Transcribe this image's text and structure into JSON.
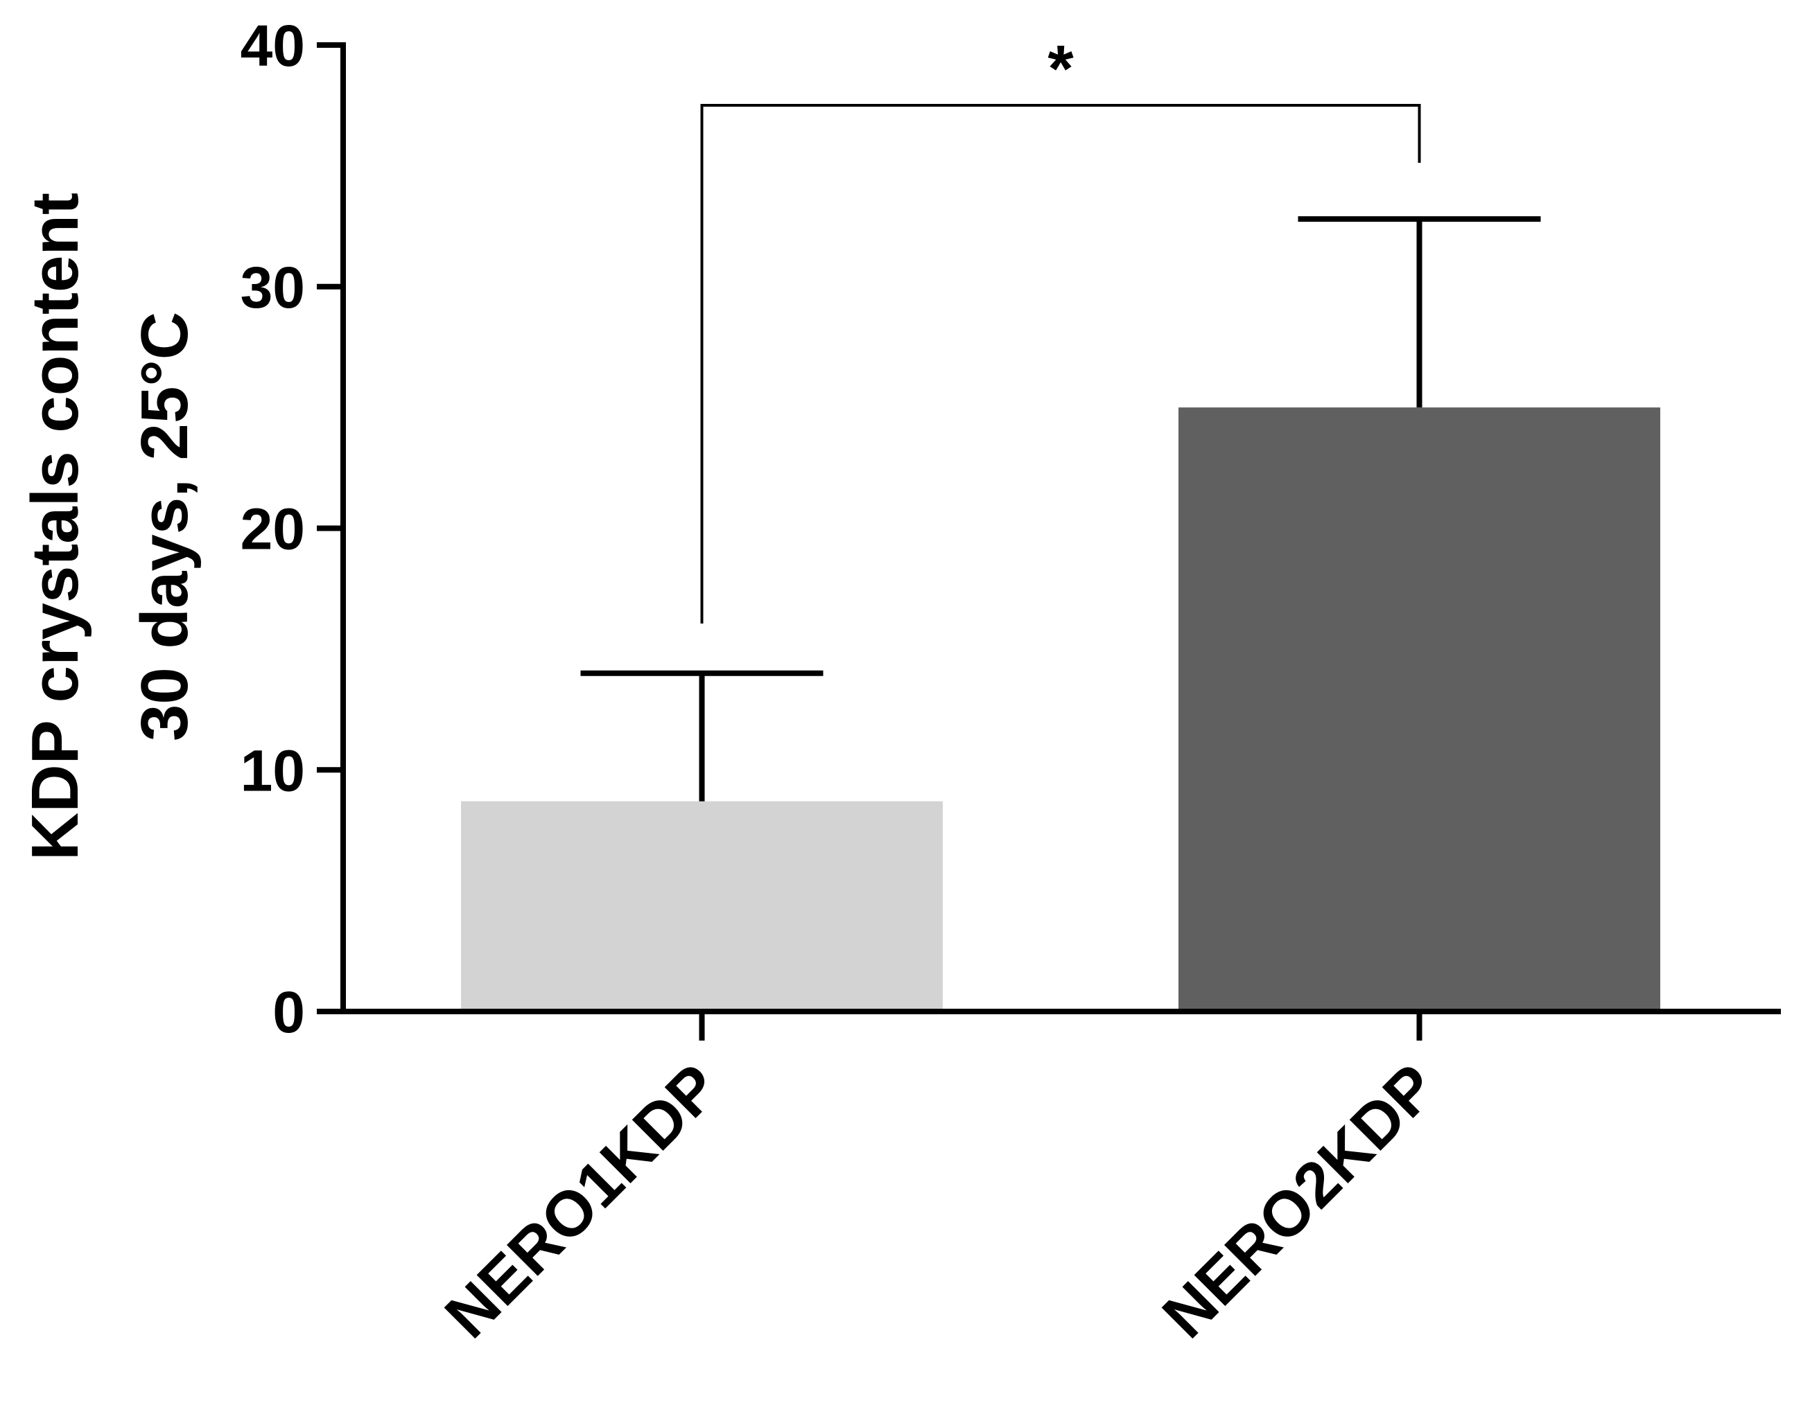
{
  "chart_data": {
    "type": "bar",
    "categories": [
      "NERO1KDP",
      "NERO2KDP"
    ],
    "values": [
      8.7,
      25.0
    ],
    "error_plus": [
      5.3,
      7.8
    ],
    "colors": [
      "#d3d3d3",
      "#606060"
    ],
    "ylabel_lines": [
      "KDP crystals content",
      "30 days, 25°C"
    ],
    "ylim": [
      0,
      40
    ],
    "yticks": [
      0,
      10,
      20,
      30,
      40
    ],
    "significance": {
      "from": 0,
      "to": 1,
      "label": "*"
    },
    "grid": false
  }
}
